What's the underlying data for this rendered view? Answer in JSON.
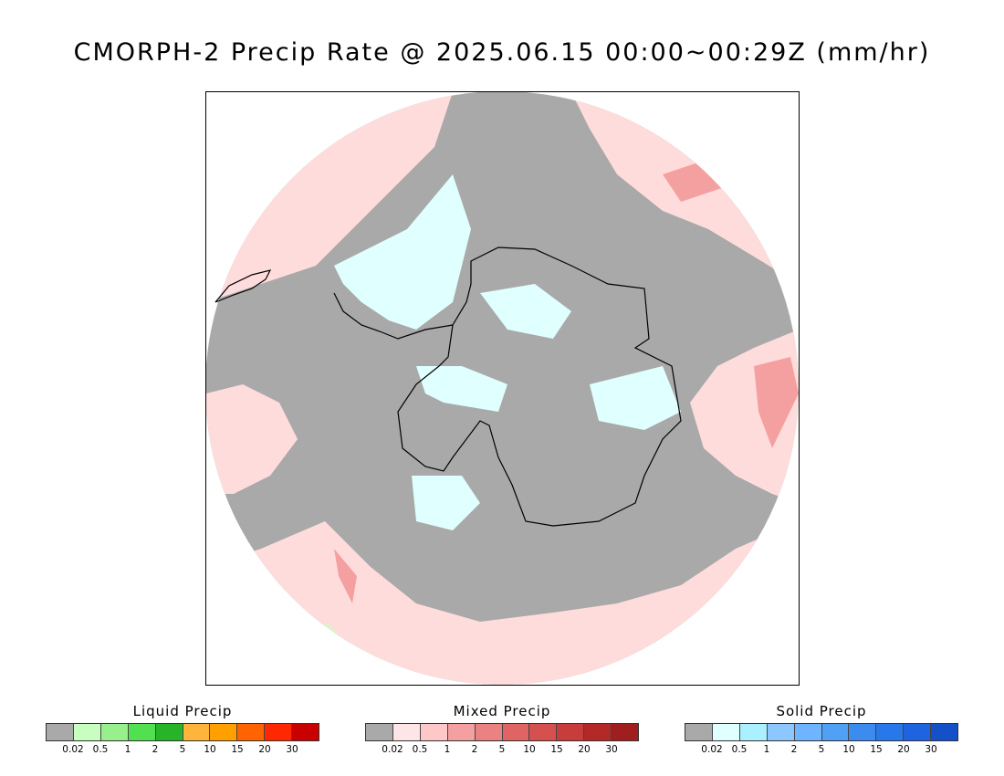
{
  "title": "CMORPH-2 Precip Rate @ 2025.06.15 00:00~00:29Z (mm/hr)",
  "map": {
    "projection": "south polar stereographic",
    "colors": {
      "no_precip": "#a9a9a9",
      "mixed_light": "#ffdcdc",
      "mixed_moderate": "#f5a0a0",
      "solid_light": "#e0ffff",
      "liquid_light": "#c8ffc0",
      "coast": "#000000"
    }
  },
  "legends": [
    {
      "name": "liquid",
      "title": "Liquid Precip",
      "colors": [
        "#a9a9a9",
        "#c8ffc0",
        "#98f08c",
        "#50e050",
        "#28b428",
        "#ffb43c",
        "#ffa000",
        "#ff6400",
        "#ff2800",
        "#c80000"
      ],
      "ticks": [
        "0.02",
        "0.5",
        "1",
        "2",
        "5",
        "10",
        "15",
        "20",
        "30"
      ]
    },
    {
      "name": "mixed",
      "title": "Mixed Precip",
      "colors": [
        "#a9a9a9",
        "#ffe6e6",
        "#ffc8c8",
        "#f5a0a0",
        "#eb8282",
        "#e16464",
        "#d75050",
        "#c83c3c",
        "#b42828",
        "#a01e1e"
      ],
      "ticks": [
        "0.02",
        "0.5",
        "1",
        "2",
        "5",
        "10",
        "15",
        "20",
        "30"
      ]
    },
    {
      "name": "solid",
      "title": "Solid Precip",
      "colors": [
        "#a9a9a9",
        "#e0ffff",
        "#aaf0ff",
        "#8cc8ff",
        "#6eb4ff",
        "#50a0f5",
        "#3c8cf0",
        "#2878eb",
        "#1e64e1",
        "#1450c8"
      ],
      "ticks": [
        "0.02",
        "0.5",
        "1",
        "2",
        "5",
        "10",
        "15",
        "20",
        "30"
      ]
    }
  ]
}
